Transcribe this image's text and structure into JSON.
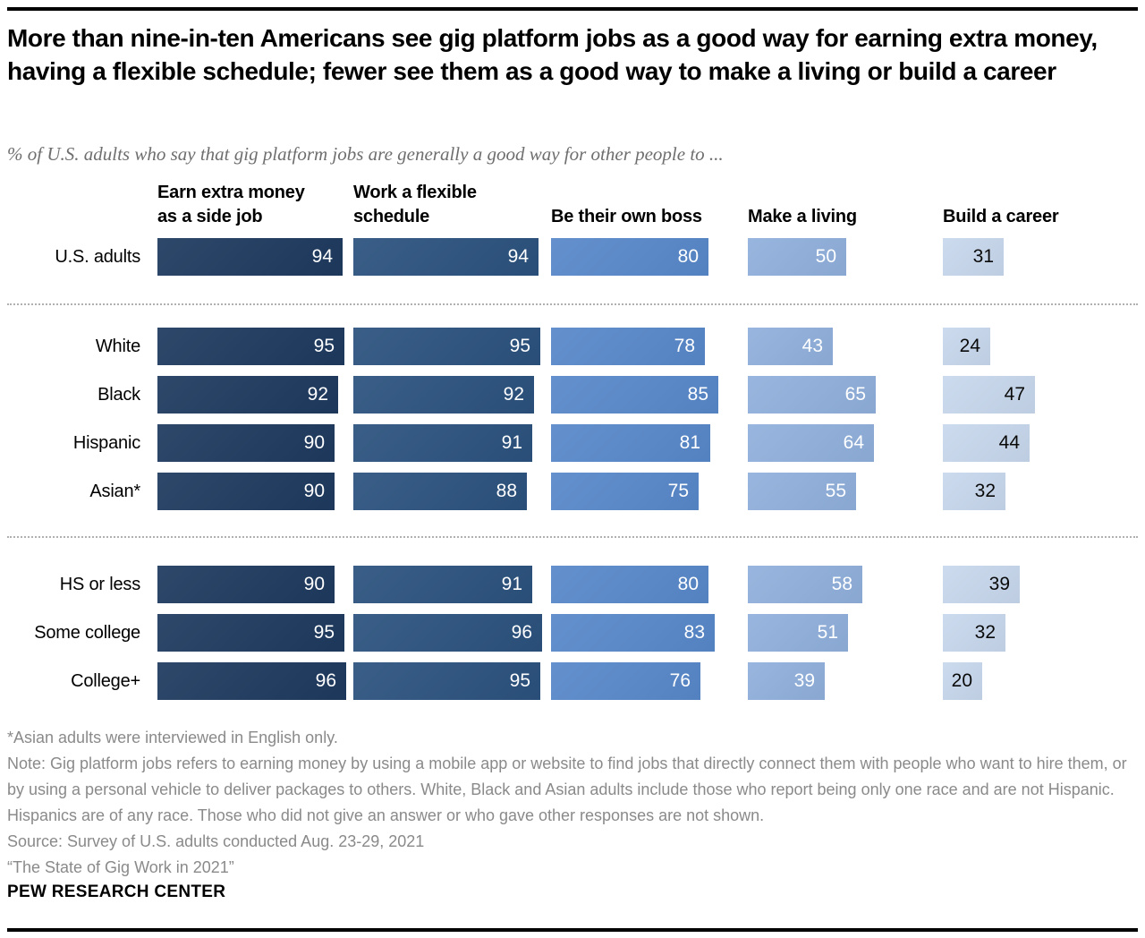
{
  "header": {
    "title": "More than nine-in-ten Americans see gig platform jobs as a good way for earning extra money, having a flexible schedule; fewer see them as a good way to make a living or build a career",
    "subtitle": "% of U.S. adults who say that gig platform jobs are generally a good way for other people to ..."
  },
  "chart_data": {
    "type": "bar",
    "orientation": "horizontal",
    "value_unit": "percent",
    "xlim": [
      0,
      100
    ],
    "axis_visible": false,
    "value_labels": "inside-right",
    "columns": [
      "Earn extra money as a side job",
      "Work a flexible schedule",
      "Be their own boss",
      "Make a living",
      "Build a career"
    ],
    "column_headers": [
      [
        "Earn extra money",
        "as a side job"
      ],
      [
        "Work a flexible",
        "schedule"
      ],
      [
        "Be their own boss"
      ],
      [
        "Make a living"
      ],
      [
        "Build a career"
      ]
    ],
    "column_colors": [
      "#1e3a5f",
      "#2b527e",
      "#5888ca",
      "#90b0dc",
      "#c8d8ed"
    ],
    "value_text_colors": [
      "#ffffff",
      "#ffffff",
      "#ffffff",
      "#ffffff",
      "#0a0a0a"
    ],
    "groups": [
      {
        "name": "overall",
        "rows": [
          {
            "label": "U.S. adults",
            "values": [
              94,
              94,
              80,
              50,
              31
            ]
          }
        ]
      },
      {
        "name": "race-ethnicity",
        "rows": [
          {
            "label": "White",
            "values": [
              95,
              95,
              78,
              43,
              24
            ]
          },
          {
            "label": "Black",
            "values": [
              92,
              92,
              85,
              65,
              47
            ]
          },
          {
            "label": "Hispanic",
            "values": [
              90,
              91,
              81,
              64,
              44
            ]
          },
          {
            "label": "Asian*",
            "values": [
              90,
              88,
              75,
              55,
              32
            ]
          }
        ]
      },
      {
        "name": "education",
        "rows": [
          {
            "label": "HS or less",
            "values": [
              90,
              91,
              80,
              58,
              39
            ]
          },
          {
            "label": "Some college",
            "values": [
              95,
              96,
              83,
              51,
              32
            ]
          },
          {
            "label": "College+",
            "values": [
              96,
              95,
              76,
              39,
              20
            ]
          }
        ]
      }
    ]
  },
  "footnotes": {
    "asterisk": "*Asian adults were interviewed in English only.",
    "note": "Note: Gig platform jobs refers to earning money by using a mobile app or website to find jobs that directly connect them with people who want to hire them, or by using a personal vehicle to deliver packages to others. White, Black and Asian adults include those who report being only one race and are not Hispanic. Hispanics are of any race. Those who did not give an answer or who gave other responses are not shown.",
    "source": "Source: Survey of U.S. adults conducted Aug. 23-29, 2021",
    "report": "“The State of Gig Work in 2021”"
  },
  "branding": {
    "name": "PEW RESEARCH CENTER"
  }
}
